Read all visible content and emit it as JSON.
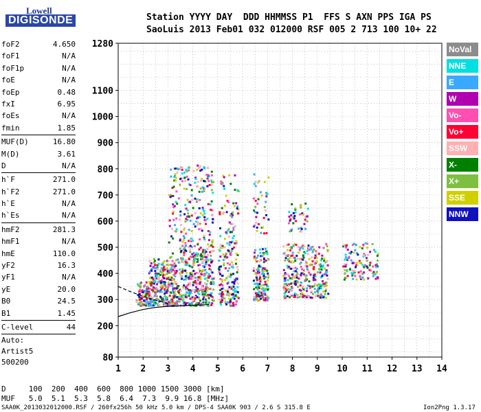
{
  "logo": {
    "top": "Lowell",
    "bottom": "DIGISONDE"
  },
  "header": {
    "line1": "Station YYYY DAY  DDD HHMMSS P1  FFS S AXN PPS IGA PS",
    "line2": "SaoLuis 2013 Feb01 032 012000 RSF 005 2 713 100 10+ 22"
  },
  "params": [
    {
      "name": "foF2",
      "value": "4.650"
    },
    {
      "name": "foF1",
      "value": "N/A"
    },
    {
      "name": "foF1p",
      "value": "N/A"
    },
    {
      "name": "foE",
      "value": "N/A"
    },
    {
      "name": "foEp",
      "value": "0.48"
    },
    {
      "name": "fxI",
      "value": "6.95"
    },
    {
      "name": "foEs",
      "value": "N/A"
    },
    {
      "name": "fmin",
      "value": "1.85"
    },
    {
      "sep": true
    },
    {
      "name": "MUF(D)",
      "value": "16.80"
    },
    {
      "name": "M(D)",
      "value": "3.61"
    },
    {
      "name": "D",
      "value": "N/A"
    },
    {
      "sep": true
    },
    {
      "name": "h`F",
      "value": "271.0"
    },
    {
      "name": "h`F2",
      "value": "271.0"
    },
    {
      "name": "h`E",
      "value": "N/A"
    },
    {
      "name": "h`Es",
      "value": "N/A"
    },
    {
      "sep": true
    },
    {
      "name": "hmF2",
      "value": "281.3"
    },
    {
      "name": "hmF1",
      "value": "N/A"
    },
    {
      "name": "hmE",
      "value": "110.0"
    },
    {
      "name": "yF2",
      "value": "16.3"
    },
    {
      "name": "yF1",
      "value": "N/A"
    },
    {
      "name": "yE",
      "value": "20.0"
    },
    {
      "name": "B0",
      "value": "24.5"
    },
    {
      "name": "B1",
      "value": "1.45"
    },
    {
      "sep": true
    },
    {
      "name": "C-level",
      "value": "44"
    },
    {
      "sep": true
    }
  ],
  "auto_text": [
    "Auto:",
    "Artist5",
    "500200"
  ],
  "legend": [
    {
      "label": "NoVal",
      "color": "#8c8c8c"
    },
    {
      "label": "NNE",
      "color": "#00e0e0"
    },
    {
      "label": "E",
      "color": "#3aa8ff"
    },
    {
      "label": "W",
      "color": "#b000b0"
    },
    {
      "label": "Vo-",
      "color": "#ff4fb0"
    },
    {
      "label": "Vo+",
      "color": "#ff0033"
    },
    {
      "label": "SSW",
      "color": "#ffb0b0"
    },
    {
      "label": "X-",
      "color": "#008000"
    },
    {
      "label": "X+",
      "color": "#7fbf40"
    },
    {
      "label": "SSE",
      "color": "#d0d000"
    },
    {
      "label": "NNW",
      "color": "#1010c0"
    }
  ],
  "chart_data": {
    "type": "scatter",
    "xlim": [
      1,
      14
    ],
    "ylim": [
      80,
      1280
    ],
    "x_ticks": [
      1,
      2,
      3,
      4,
      5,
      6,
      7,
      8,
      9,
      10,
      11,
      12,
      13,
      14
    ],
    "y_ticks": [
      80,
      200,
      300,
      400,
      500,
      600,
      700,
      800,
      900,
      1000,
      1100,
      1280
    ],
    "x_tick_labels": [
      "1",
      "2",
      "3",
      "4",
      "5",
      "6",
      "7",
      "8",
      "9",
      "10",
      "11",
      "12",
      "13",
      "14"
    ],
    "y_tick_labels": [
      "80",
      "200",
      "300",
      "400",
      "500",
      "600",
      "700",
      "800",
      "900",
      "1000",
      "1100",
      "1280"
    ],
    "grid": true,
    "clusters": [
      {
        "x": [
          1.7,
          2.2
        ],
        "y": [
          280,
          370
        ],
        "n": 90
      },
      {
        "x": [
          2.2,
          3.0
        ],
        "y": [
          280,
          460
        ],
        "n": 220
      },
      {
        "x": [
          3.0,
          4.8
        ],
        "y": [
          280,
          470
        ],
        "n": 420
      },
      {
        "x": [
          3.0,
          4.8
        ],
        "y": [
          470,
          820
        ],
        "n": 260
      },
      {
        "x": [
          5.0,
          5.8
        ],
        "y": [
          280,
          520
        ],
        "n": 160
      },
      {
        "x": [
          5.0,
          5.8
        ],
        "y": [
          520,
          780
        ],
        "n": 60
      },
      {
        "x": [
          6.4,
          7.0
        ],
        "y": [
          300,
          500
        ],
        "n": 160
      },
      {
        "x": [
          6.4,
          7.0
        ],
        "y": [
          550,
          790
        ],
        "n": 40
      },
      {
        "x": [
          7.6,
          9.4
        ],
        "y": [
          310,
          520
        ],
        "n": 320
      },
      {
        "x": [
          7.8,
          8.6
        ],
        "y": [
          560,
          680
        ],
        "n": 40
      },
      {
        "x": [
          10.0,
          11.4
        ],
        "y": [
          380,
          520
        ],
        "n": 120
      }
    ],
    "curves": [
      {
        "style": "solid",
        "x": [
          1.0,
          1.5,
          2.0,
          2.5,
          3.0,
          3.5,
          4.0,
          4.5,
          4.65
        ],
        "y": [
          235,
          250,
          262,
          270,
          274,
          276,
          278,
          280,
          281
        ]
      },
      {
        "style": "dashed",
        "x": [
          1.0,
          1.5,
          2.0,
          2.5,
          3.0
        ],
        "y": [
          350,
          330,
          312,
          298,
          285
        ]
      }
    ]
  },
  "footer": {
    "d_line": "D     100  200  400  600  800 1000 1500 3000 [km]",
    "muf_line": "MUF   5.0  5.1  5.3  5.8  6.4  7.3  9.9 16.8 [MHz]",
    "file_line": "SAA0K_2013032012000.RSF / 260fx256h 50 kHz 5.0 km / DPS-4 SAA0K 903 / 2.6 S 315.8 E",
    "version": "Ion2Png 1.3.17"
  }
}
